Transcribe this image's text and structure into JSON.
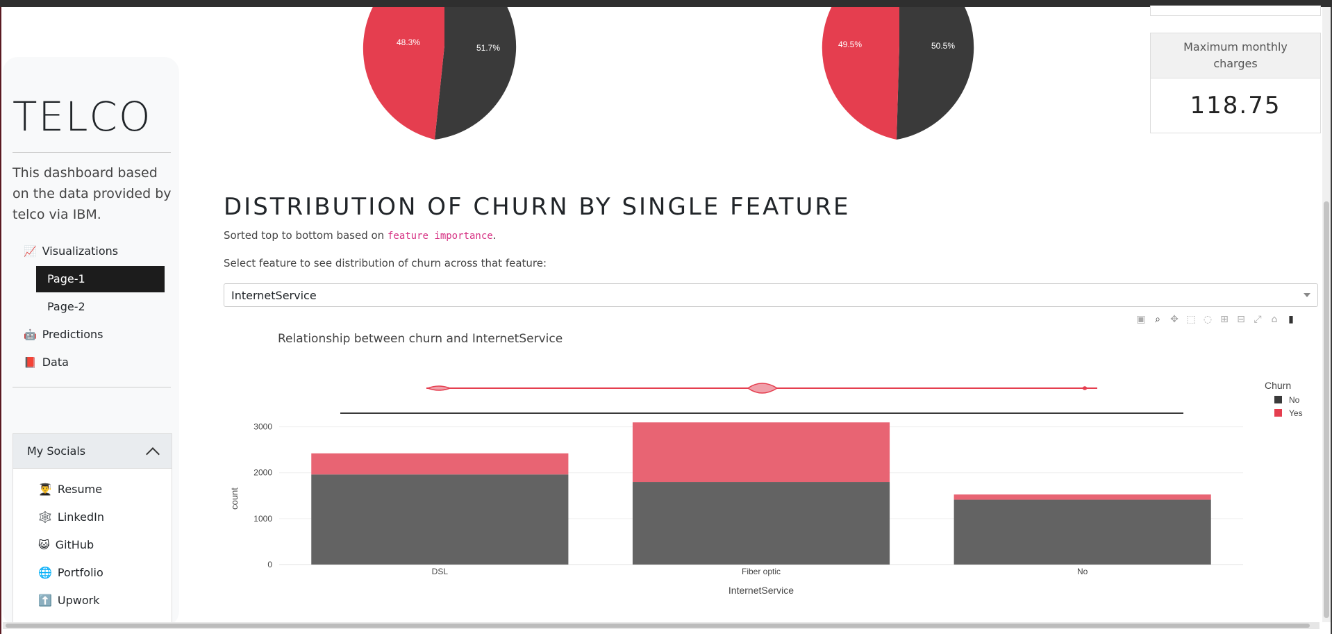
{
  "sidebar": {
    "brand": "TELCO",
    "description": "This dashboard based on the data provided by telco via IBM.",
    "nav": {
      "visualizations": {
        "emoji": "📈",
        "label": "Visualizations"
      },
      "page1": "Page-1",
      "page2": "Page-2",
      "predictions": {
        "emoji": "🤖",
        "label": "Predictions"
      },
      "data": {
        "emoji": "📕",
        "label": "Data"
      }
    },
    "socials": {
      "title": "My Socials",
      "items": [
        {
          "emoji": "👨‍🎓",
          "label": "Resume"
        },
        {
          "emoji": "🕸️",
          "label": "LinkedIn"
        },
        {
          "emoji": "😺",
          "label": "GitHub"
        },
        {
          "emoji": "🌐",
          "label": "Portfolio"
        },
        {
          "emoji": "⬆️",
          "label": "Upwork"
        }
      ]
    }
  },
  "pies": [
    {
      "yes_label": "48.3%",
      "no_label": "51.7%"
    },
    {
      "yes_label": "49.5%",
      "no_label": "50.5%"
    }
  ],
  "kpi": {
    "title": "Maximum monthly charges",
    "value": "118.75"
  },
  "main": {
    "section_title": "DISTRIBUTION OF CHURN BY SINGLE FEATURE",
    "sorted_prefix": "Sorted top to bottom based on ",
    "sorted_code": "feature importance",
    "sorted_suffix": ".",
    "select_label": "Select feature to see distribution of churn across that feature:",
    "dropdown_value": "InternetService"
  },
  "colors": {
    "no": "#3a3a3a",
    "yes": "#e53e4f",
    "bar_no": "#636363",
    "bar_yes": "#e86473"
  },
  "chart_data": {
    "type": "bar",
    "title": "Relationship between churn and InternetService",
    "xlabel": "InternetService",
    "ylabel": "count",
    "categories": [
      "DSL",
      "Fiber optic",
      "No"
    ],
    "series": [
      {
        "name": "No",
        "values": [
          1962,
          1799,
          1413
        ]
      },
      {
        "name": "Yes",
        "values": [
          459,
          1297,
          113
        ]
      }
    ],
    "stacked": true,
    "ylim": [
      0,
      3100
    ],
    "yticks": [
      0,
      1000,
      2000,
      3000
    ],
    "legend_title": "Churn",
    "legend_position": "top-right",
    "marginal": "violin"
  }
}
